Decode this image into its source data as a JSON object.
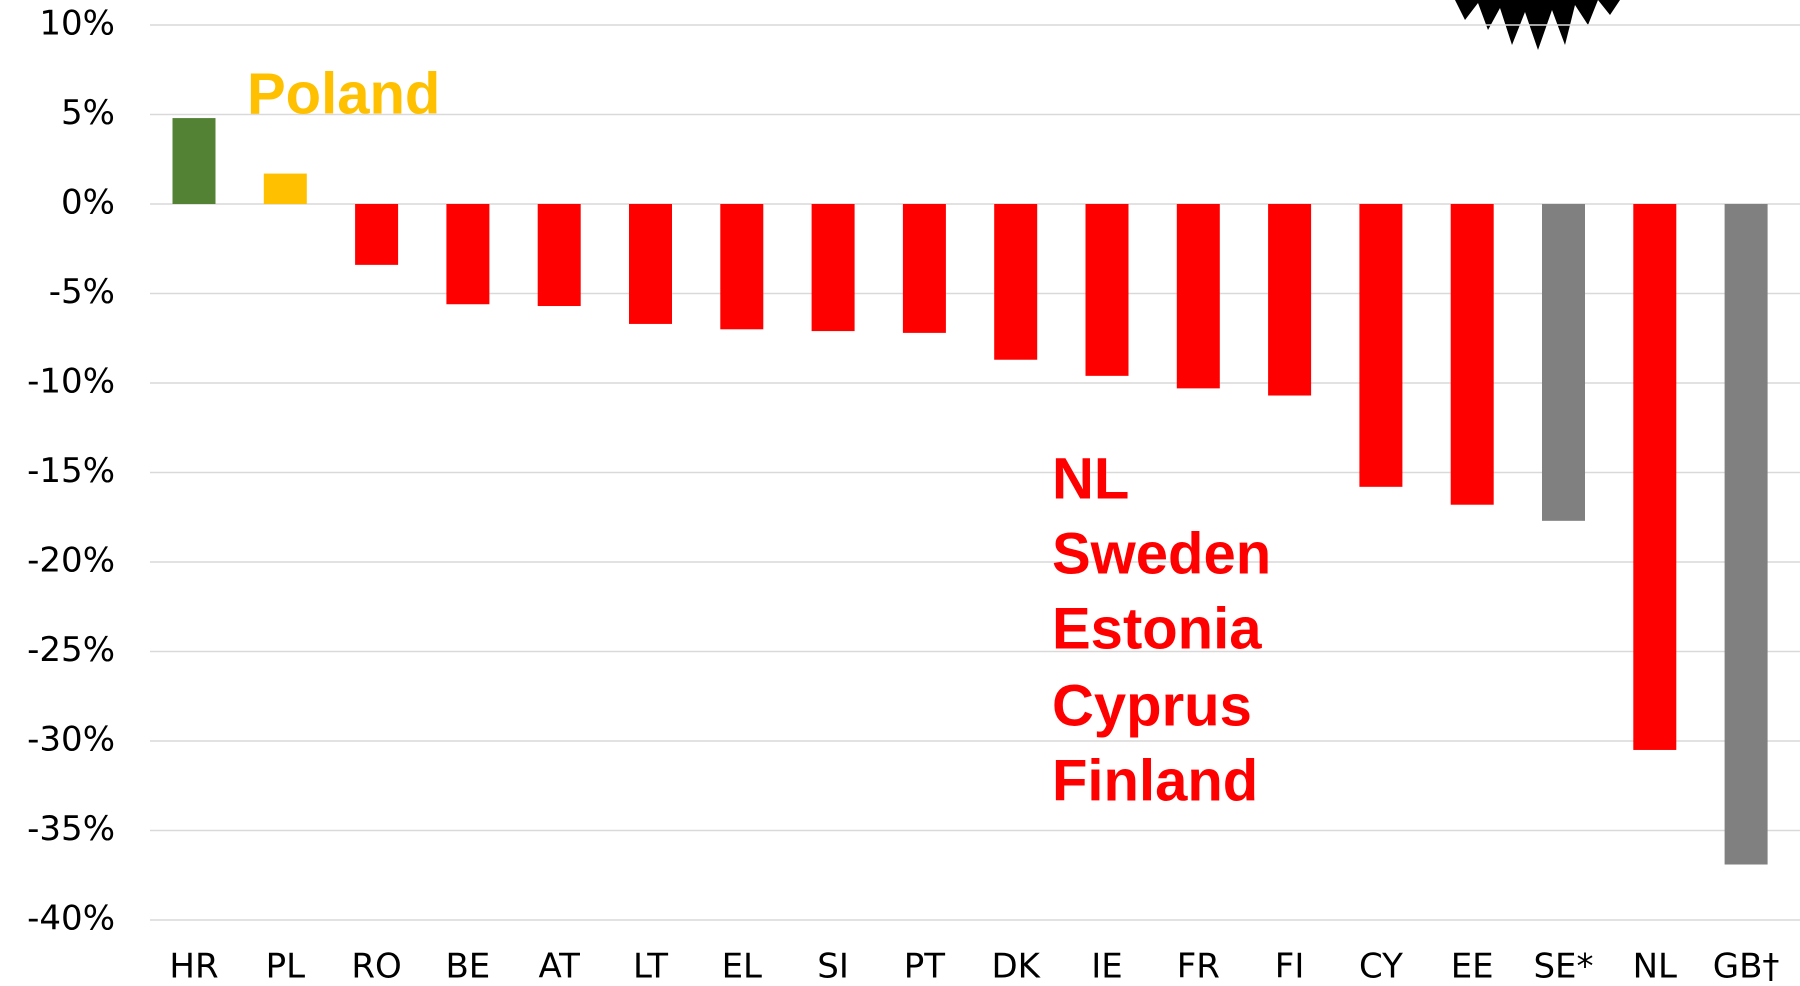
{
  "chart_data": {
    "type": "bar",
    "categories": [
      "HR",
      "PL",
      "RO",
      "BE",
      "AT",
      "LT",
      "EL",
      "SI",
      "PT",
      "DK",
      "IE",
      "FR",
      "FI",
      "CY",
      "EE",
      "SE*",
      "NL",
      "GB†"
    ],
    "values": [
      4.8,
      1.7,
      -3.4,
      -5.6,
      -5.7,
      -6.7,
      -7.0,
      -7.1,
      -7.2,
      -8.7,
      -9.6,
      -10.3,
      -10.7,
      -15.8,
      -16.8,
      -17.7,
      -30.5,
      -36.9
    ],
    "colors": [
      "#548235",
      "#ffc000",
      "#ff0000",
      "#ff0000",
      "#ff0000",
      "#ff0000",
      "#ff0000",
      "#ff0000",
      "#ff0000",
      "#ff0000",
      "#ff0000",
      "#ff0000",
      "#ff0000",
      "#ff0000",
      "#ff0000",
      "#808080",
      "#ff0000",
      "#808080"
    ],
    "ylim": [
      -40,
      10
    ],
    "yticks": [
      {
        "value": 10,
        "label": "10%"
      },
      {
        "value": 5,
        "label": "5%"
      },
      {
        "value": 0,
        "label": "0%"
      },
      {
        "value": -5,
        "label": "-5%"
      },
      {
        "value": -10,
        "label": "-10%"
      },
      {
        "value": -15,
        "label": "-15%"
      },
      {
        "value": -20,
        "label": "-20%"
      },
      {
        "value": -25,
        "label": "-25%"
      },
      {
        "value": -30,
        "label": "-30%"
      },
      {
        "value": -35,
        "label": "-35%"
      },
      {
        "value": -40,
        "label": "-40%"
      }
    ],
    "grid": true,
    "annotations": [
      {
        "text": "Poland",
        "color": "#ffc000"
      },
      {
        "text": "NL",
        "color": "#ff0000"
      },
      {
        "text": "Sweden",
        "color": "#ff0000"
      },
      {
        "text": "Estonia",
        "color": "#ff0000"
      },
      {
        "text": "Cyprus",
        "color": "#ff0000"
      },
      {
        "text": "Finland",
        "color": "#ff0000"
      }
    ]
  }
}
